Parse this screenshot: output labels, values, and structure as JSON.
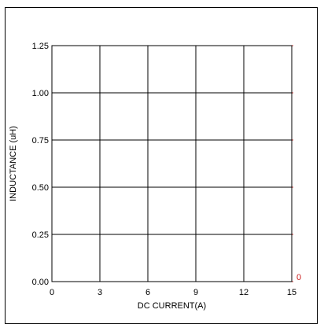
{
  "chart_data": {
    "type": "line",
    "title": "",
    "xlabel": "DC CURRENT(A)",
    "ylabel": "INDUCTANCE (uH)",
    "xlim": [
      0,
      15
    ],
    "ylim": [
      0,
      1.25
    ],
    "x_ticks": [
      "0",
      "3",
      "6",
      "9",
      "12",
      "15"
    ],
    "y_ticks": [
      "0.00",
      "0.25",
      "0.50",
      "0.75",
      "1.00",
      "1.25"
    ],
    "secondary_y_ticks": [
      "0"
    ],
    "grid": true,
    "series": []
  },
  "colors": {
    "axis": "#000000",
    "grid": "#000000",
    "secondary_axis": "#cc2222"
  }
}
